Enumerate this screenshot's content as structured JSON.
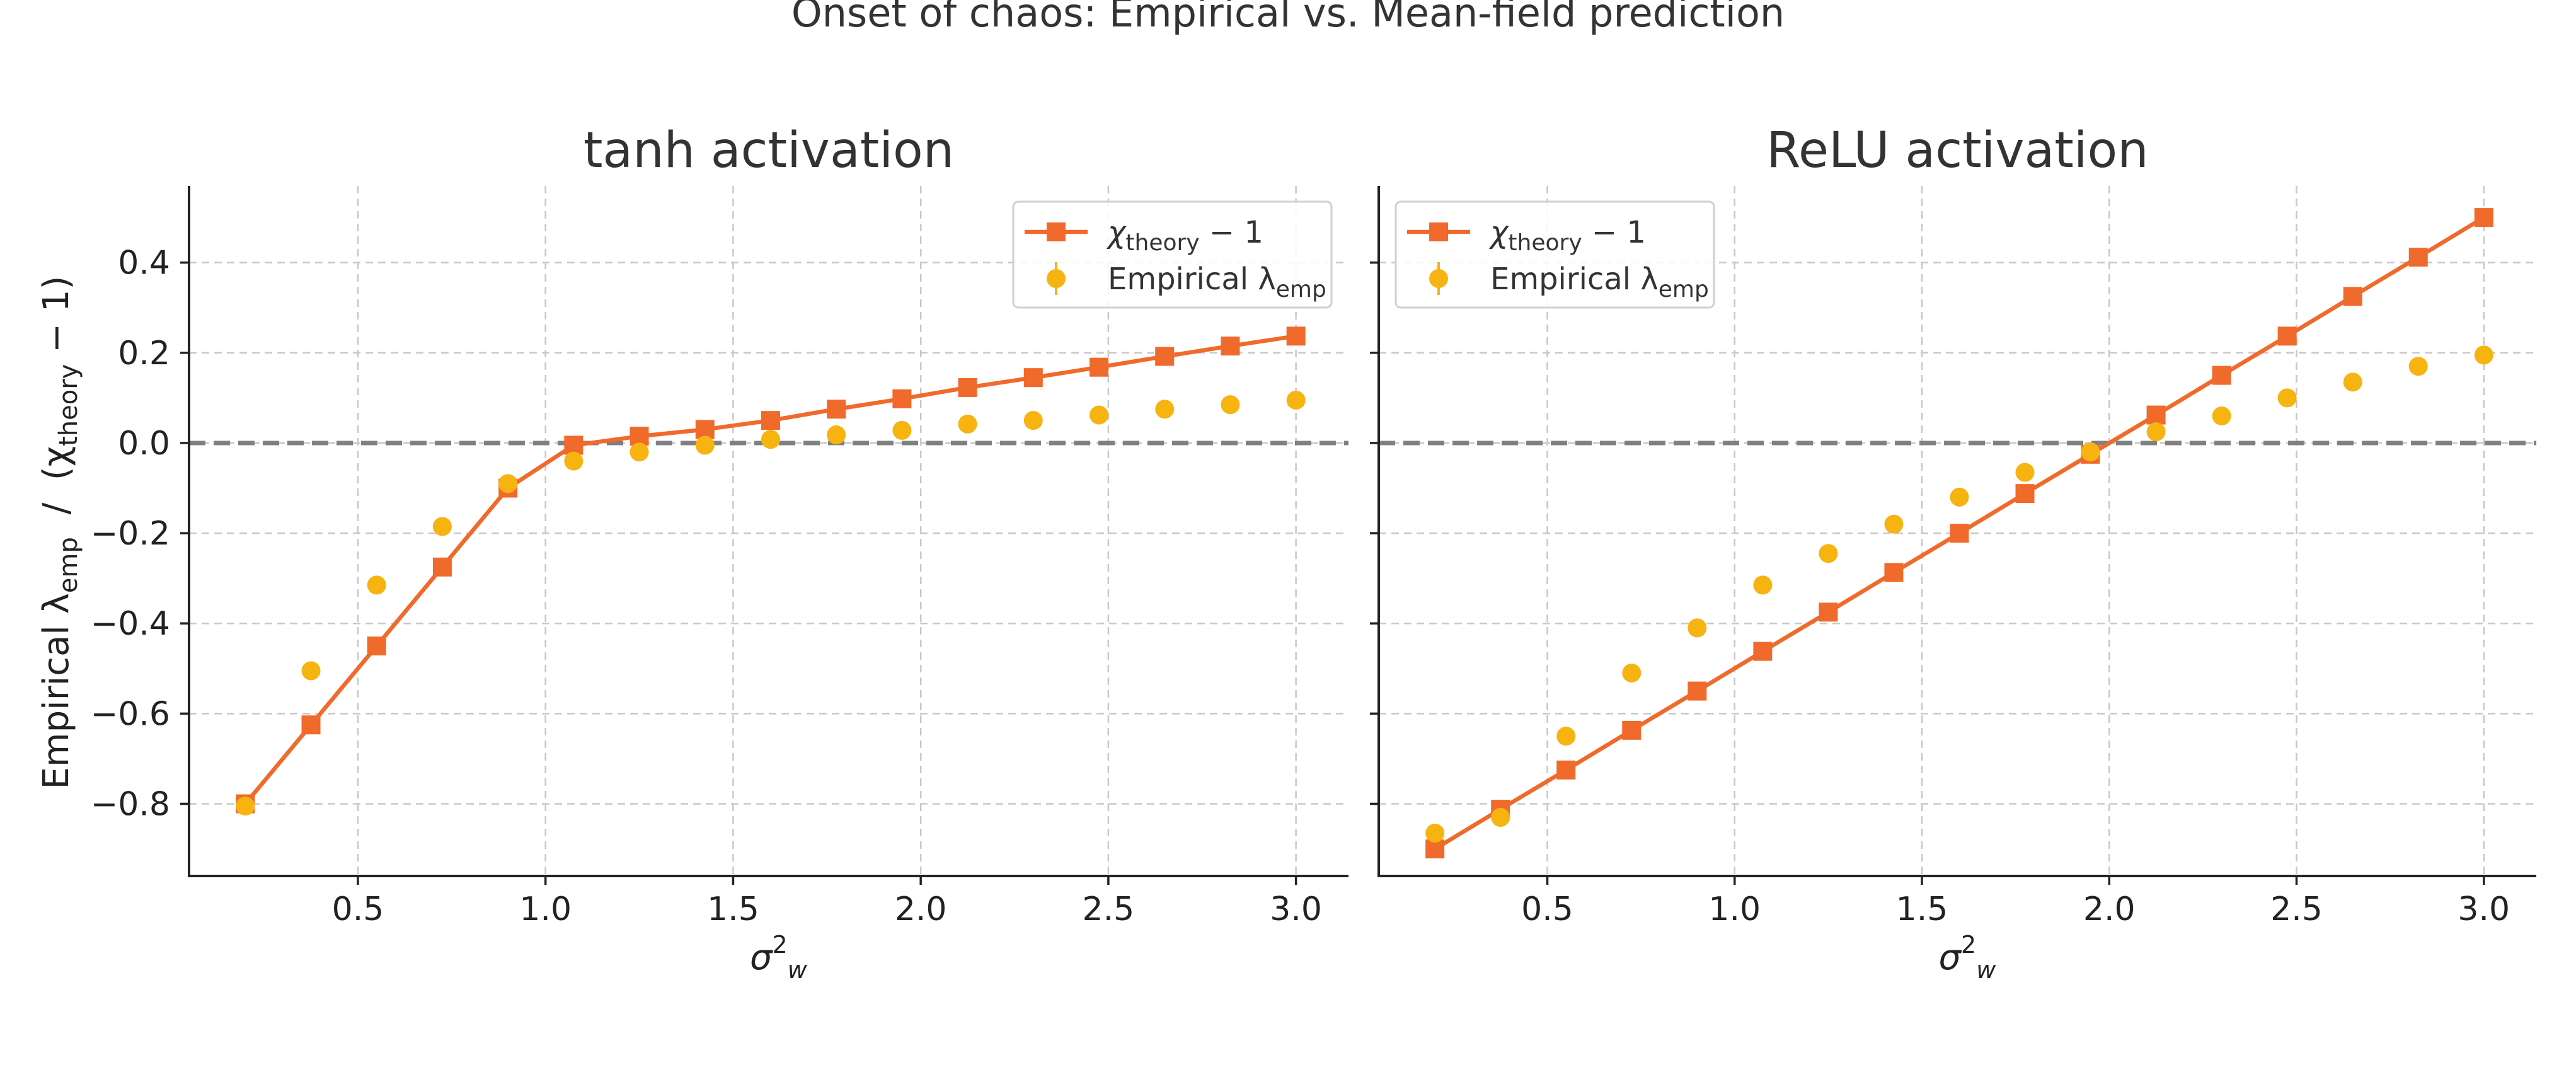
{
  "figure": {
    "suptitle": "Onset of chaos: Empirical vs. Mean-field prediction",
    "ylabel": {
      "main": "Empirical λ",
      "sub_emp": "emp",
      "sep": "  /  (χ",
      "sub_theory": "theory",
      "tail": " − 1)"
    },
    "xlabel": {
      "main": "σ",
      "sup": "2",
      "sub": "w"
    },
    "colors": {
      "theory": "#f06a2b",
      "empirical": "#f7b30f",
      "zero_line": "#808080",
      "grid": "#c8c8c8"
    }
  },
  "legend": {
    "theory": {
      "main": "χ",
      "sub": "theory",
      "tail": " − 1"
    },
    "empirical": {
      "main": "Empirical λ",
      "sub": "emp"
    }
  },
  "chart_data": [
    {
      "type": "line",
      "title": "tanh activation",
      "legend_position": "top-right",
      "grid": true,
      "xlim": [
        0.05,
        3.14
      ],
      "ylim": [
        -0.96,
        0.57
      ],
      "xticks": [
        0.5,
        1.0,
        1.5,
        2.0,
        2.5,
        3.0
      ],
      "xtick_labels": [
        "0.5",
        "1.0",
        "1.5",
        "2.0",
        "2.5",
        "3.0"
      ],
      "yticks": [
        -0.8,
        -0.6,
        -0.4,
        -0.2,
        0.0,
        0.2,
        0.4
      ],
      "ytick_labels": [
        "−0.8",
        "−0.6",
        "−0.4",
        "−0.2",
        "0.0",
        "0.2",
        "0.4"
      ],
      "reference_line": {
        "y": 0,
        "style": "dashed"
      },
      "x": [
        0.2,
        0.375,
        0.55,
        0.725,
        0.9,
        1.075,
        1.25,
        1.425,
        1.6,
        1.775,
        1.95,
        2.125,
        2.3,
        2.475,
        2.65,
        2.825,
        3.0
      ],
      "series": [
        {
          "name": "χtheory − 1",
          "marker": "square",
          "line": true,
          "values": [
            -0.8,
            -0.625,
            -0.45,
            -0.275,
            -0.1,
            -0.005,
            0.015,
            0.03,
            0.05,
            0.075,
            0.098,
            0.123,
            0.145,
            0.168,
            0.192,
            0.215,
            0.237
          ]
        },
        {
          "name": "Empirical λemp",
          "marker": "circle",
          "line": false,
          "values": [
            -0.805,
            -0.505,
            -0.315,
            -0.185,
            -0.09,
            -0.04,
            -0.02,
            -0.005,
            0.008,
            0.018,
            0.028,
            0.042,
            0.05,
            0.062,
            0.075,
            0.085,
            0.095
          ]
        }
      ]
    },
    {
      "type": "line",
      "title": "ReLU activation",
      "legend_position": "top-left",
      "grid": true,
      "xlim": [
        0.05,
        3.14
      ],
      "ylim": [
        -0.96,
        0.57
      ],
      "xticks": [
        0.5,
        1.0,
        1.5,
        2.0,
        2.5,
        3.0
      ],
      "xtick_labels": [
        "0.5",
        "1.0",
        "1.5",
        "2.0",
        "2.5",
        "3.0"
      ],
      "yticks": [
        -0.8,
        -0.6,
        -0.4,
        -0.2,
        0.0,
        0.2,
        0.4
      ],
      "ytick_labels": [],
      "reference_line": {
        "y": 0,
        "style": "dashed"
      },
      "x": [
        0.2,
        0.375,
        0.55,
        0.725,
        0.9,
        1.075,
        1.25,
        1.425,
        1.6,
        1.775,
        1.95,
        2.125,
        2.3,
        2.475,
        2.65,
        2.825,
        3.0
      ],
      "series": [
        {
          "name": "χtheory − 1",
          "marker": "square",
          "line": true,
          "values": [
            -0.9,
            -0.812,
            -0.725,
            -0.637,
            -0.55,
            -0.462,
            -0.375,
            -0.287,
            -0.2,
            -0.112,
            -0.025,
            0.062,
            0.15,
            0.237,
            0.325,
            0.412,
            0.5
          ]
        },
        {
          "name": "Empirical λemp",
          "marker": "circle",
          "line": false,
          "values": [
            -0.865,
            -0.83,
            -0.65,
            -0.51,
            -0.41,
            -0.315,
            -0.245,
            -0.18,
            -0.12,
            -0.065,
            -0.02,
            0.025,
            0.06,
            0.1,
            0.135,
            0.17,
            0.195
          ]
        }
      ]
    }
  ]
}
